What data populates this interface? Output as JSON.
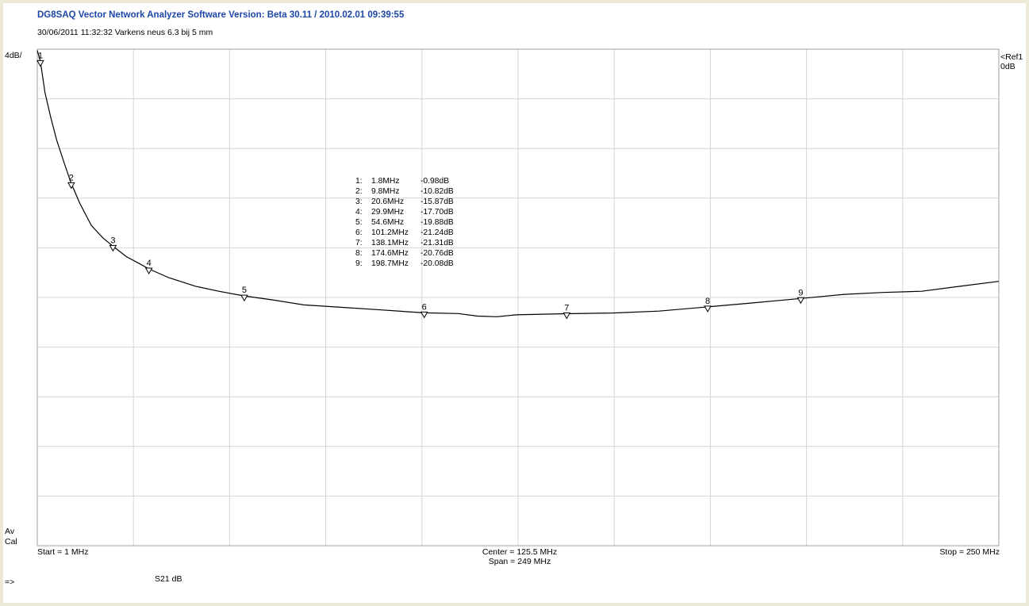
{
  "header": {
    "app_title": "DG8SAQ Vector Network Analyzer Software   Version:  Beta 30.11 / 2010.02.01 09:39:55",
    "subtitle": "30/06/2011   11:32:32    Varkens neus 6.3 bij 5 mm"
  },
  "scale": {
    "per_division": "4dB/",
    "ref_line1": "<Ref1",
    "ref_line2": "0dB",
    "av": "Av",
    "cal": "Cal"
  },
  "footer": {
    "start": "Start = 1 MHz",
    "center": "Center = 125.5 MHz",
    "span": "Span = 249 MHz",
    "stop": "Stop = 250 MHz",
    "measurement": "S21    dB",
    "prompt": "=>"
  },
  "markers": [
    {
      "idx": "1:",
      "freq": " 1.8MHz",
      "val": "-0.98dB"
    },
    {
      "idx": "2:",
      "freq": " 9.8MHz",
      "val": "-10.82dB"
    },
    {
      "idx": "3:",
      "freq": " 20.6MHz",
      "val": "-15.87dB"
    },
    {
      "idx": "4:",
      "freq": " 29.9MHz",
      "val": "-17.70dB"
    },
    {
      "idx": "5:",
      "freq": " 54.6MHz",
      "val": "-19.88dB"
    },
    {
      "idx": "6:",
      "freq": "101.2MHz",
      "val": "-21.24dB"
    },
    {
      "idx": "7:",
      "freq": "138.1MHz",
      "val": "-21.31dB"
    },
    {
      "idx": "8:",
      "freq": "174.6MHz",
      "val": "-20.76dB"
    },
    {
      "idx": "9:",
      "freq": "198.7MHz",
      "val": "-20.08dB"
    }
  ],
  "chart_data": {
    "type": "line",
    "xlabel": "",
    "ylabel": "",
    "xlim": [
      1,
      250
    ],
    "ylim": [
      -40,
      0
    ],
    "grid": true,
    "colors": {
      "trace": "#000000",
      "grid": "#d4d4d4",
      "border": "#a0a0a0"
    },
    "series": [
      {
        "x": [
          1,
          1.8,
          3,
          4.5,
          6,
          8,
          9.8,
          12,
          15,
          18,
          20.6,
          24,
          27,
          29.9,
          35,
          42,
          48,
          54.6,
          62,
          70,
          80,
          90,
          101.2,
          110,
          115,
          120,
          125,
          132,
          138.1,
          150,
          162,
          174.6,
          186,
          198.7,
          210,
          220,
          230,
          240,
          250
        ],
        "y": [
          -0.1,
          -0.98,
          -3.5,
          -5.5,
          -7.3,
          -9.2,
          -10.82,
          -12.4,
          -14.2,
          -15.2,
          -15.87,
          -16.7,
          -17.2,
          -17.7,
          -18.4,
          -19.1,
          -19.5,
          -19.88,
          -20.2,
          -20.6,
          -20.8,
          -21.0,
          -21.24,
          -21.3,
          -21.5,
          -21.55,
          -21.4,
          -21.35,
          -21.31,
          -21.25,
          -21.1,
          -20.76,
          -20.45,
          -20.08,
          -19.75,
          -19.6,
          -19.5,
          -19.1,
          -18.7
        ]
      }
    ],
    "marker_points": [
      {
        "label": "1",
        "x": 1.8,
        "y": -0.98
      },
      {
        "label": "2",
        "x": 9.8,
        "y": -10.82
      },
      {
        "label": "3",
        "x": 20.6,
        "y": -15.87
      },
      {
        "label": "4",
        "x": 29.9,
        "y": -17.7
      },
      {
        "label": "5",
        "x": 54.6,
        "y": -19.88
      },
      {
        "label": "6",
        "x": 101.2,
        "y": -21.24
      },
      {
        "label": "7",
        "x": 138.1,
        "y": -21.31
      },
      {
        "label": "8",
        "x": 174.6,
        "y": -20.76
      },
      {
        "label": "9",
        "x": 198.7,
        "y": -20.08
      }
    ]
  }
}
